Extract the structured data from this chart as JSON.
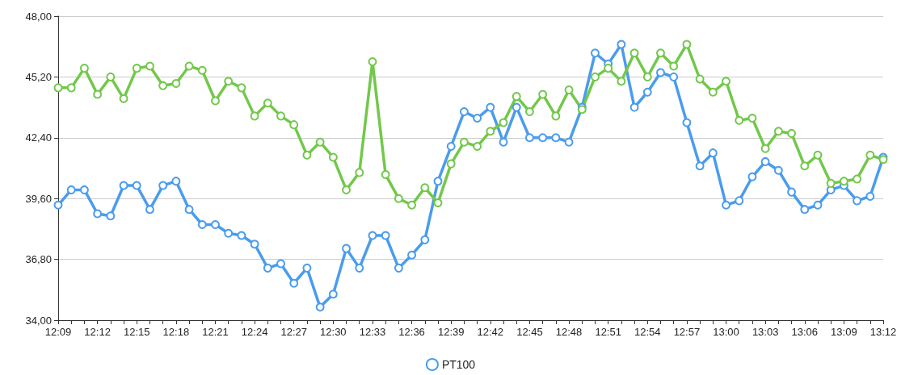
{
  "chart_data": {
    "type": "line",
    "categories": [
      "12:09",
      null,
      null,
      "12:12",
      null,
      null,
      "12:15",
      null,
      null,
      "12:18",
      null,
      null,
      "12:21",
      null,
      null,
      "12:24",
      null,
      null,
      "12:27",
      null,
      null,
      "12:30",
      null,
      null,
      "12:33",
      null,
      null,
      "12:36",
      null,
      null,
      "12:39",
      null,
      null,
      "12:42",
      null,
      null,
      "12:45",
      null,
      null,
      "12:48",
      null,
      null,
      "12:51",
      null,
      null,
      "12:54",
      null,
      null,
      "12:57",
      null,
      null,
      "13:00",
      null,
      null,
      "13:03",
      null,
      null,
      "13:06",
      null,
      null,
      "13:09",
      null,
      null,
      "13:12"
    ],
    "series": [
      {
        "name": "PT100",
        "color": "#4a9ced",
        "values": [
          39.3,
          40.0,
          40.0,
          38.9,
          38.8,
          40.2,
          40.2,
          39.1,
          40.2,
          40.4,
          39.1,
          38.4,
          38.4,
          38.0,
          37.9,
          37.5,
          36.4,
          36.6,
          35.7,
          36.4,
          34.6,
          35.2,
          37.3,
          36.4,
          37.9,
          37.9,
          36.4,
          37.0,
          37.7,
          40.4,
          42.0,
          43.6,
          43.3,
          43.8,
          42.2,
          43.8,
          42.4,
          42.4,
          42.4,
          42.2,
          43.8,
          46.3,
          45.8,
          46.7,
          43.8,
          44.5,
          45.4,
          45.2,
          43.1,
          41.1,
          41.7,
          39.3,
          39.5,
          40.6,
          41.3,
          40.9,
          39.9,
          39.1,
          39.3,
          40.0,
          40.2,
          39.5,
          39.7,
          41.5
        ]
      },
      {
        "color": "#72c84a",
        "values": [
          44.7,
          44.7,
          45.6,
          44.4,
          45.2,
          44.2,
          45.6,
          45.7,
          44.8,
          44.9,
          45.7,
          45.5,
          44.1,
          45.0,
          44.7,
          43.4,
          44.0,
          43.4,
          43.0,
          41.6,
          42.2,
          41.5,
          40.0,
          40.8,
          45.9,
          40.7,
          39.6,
          39.3,
          40.1,
          39.4,
          41.2,
          42.2,
          42.0,
          42.7,
          43.1,
          44.3,
          43.6,
          44.4,
          43.4,
          44.6,
          43.7,
          45.2,
          45.6,
          45.0,
          46.3,
          45.2,
          46.3,
          45.7,
          46.7,
          45.1,
          44.5,
          45.0,
          43.2,
          43.3,
          41.9,
          42.7,
          42.6,
          41.1,
          41.6,
          40.3,
          40.4,
          40.5,
          41.6,
          41.4
        ]
      }
    ],
    "ylim": [
      34,
      48
    ],
    "yticks": [
      {
        "value": 34,
        "label": "34,00"
      },
      {
        "value": 36.8,
        "label": "36,80"
      },
      {
        "value": 39.6,
        "label": "39,60"
      },
      {
        "value": 42.4,
        "label": "42,40"
      },
      {
        "value": 45.2,
        "label": "45,20"
      },
      {
        "value": 48,
        "label": "48,00"
      }
    ],
    "grid": "y",
    "legend": "bottom",
    "marker": "circle",
    "line_style": "solid"
  }
}
